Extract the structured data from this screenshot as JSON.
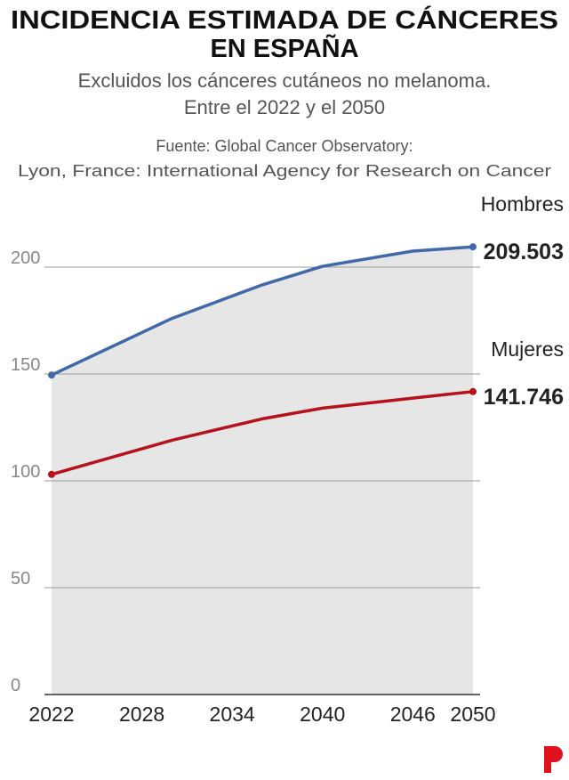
{
  "chart_data": {
    "type": "line",
    "title": [
      "INCIDENCIA ESTIMADA DE CÁNCERES",
      "EN ESPAÑA"
    ],
    "subtitle": [
      "Excluidos los cánceres cutáneos no melanoma.",
      "Entre el 2022 y el 2050"
    ],
    "source": [
      "Fuente: Global Cancer Observatory:",
      "Lyon, France: International Agency for Research on Cancer"
    ],
    "x": [
      2022,
      2030,
      2036,
      2040,
      2046,
      2050
    ],
    "series": [
      {
        "name": "Hombres",
        "color": "#4169aa",
        "values": [
          149.5,
          176,
          191.7,
          200.4,
          207.5,
          209.503
        ],
        "value_labels": [
          null,
          null,
          null,
          null,
          null,
          "209.503"
        ],
        "area": true
      },
      {
        "name": "Mujeres",
        "color": "#b5121b",
        "values": [
          103,
          119,
          129,
          134,
          138.7,
          141.746
        ],
        "value_labels": [
          null,
          null,
          null,
          null,
          null,
          "141.746"
        ]
      }
    ],
    "xlim": [
      2022,
      2050
    ],
    "xticks": [
      2022,
      2028,
      2034,
      2040,
      2046,
      2050
    ],
    "ylim": [
      0,
      215
    ],
    "yticks": [
      0,
      50,
      100,
      150,
      200
    ],
    "grid": true
  }
}
